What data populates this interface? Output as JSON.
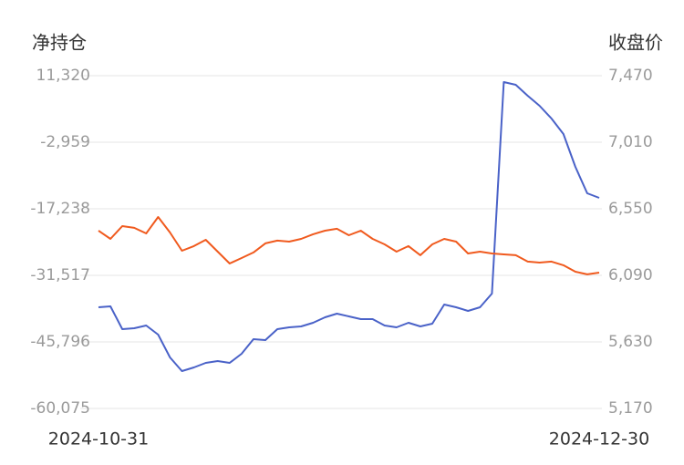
{
  "chart_data": {
    "type": "line",
    "ylabel": "净持仓",
    "y2label": "收盘价",
    "categories": [
      "2024-10-31",
      null,
      null,
      null,
      null,
      null,
      null,
      null,
      null,
      null,
      null,
      null,
      null,
      null,
      null,
      null,
      null,
      null,
      null,
      null,
      null,
      null,
      null,
      null,
      null,
      null,
      null,
      null,
      null,
      null,
      null,
      null,
      null,
      null,
      null,
      null,
      null,
      null,
      null,
      null,
      null,
      null,
      "2024-12-30"
    ],
    "ylim": [
      -60075,
      11320
    ],
    "yticks": [
      {
        "value": 11320,
        "label": "11,320"
      },
      {
        "value": -2959,
        "label": "-2,959"
      },
      {
        "value": -17238,
        "label": "-17,238"
      },
      {
        "value": -31517,
        "label": "-31,517"
      },
      {
        "value": -45796,
        "label": "-45,796"
      },
      {
        "value": -60075,
        "label": "-60,075"
      }
    ],
    "y2lim": [
      5170,
      7470
    ],
    "y2ticks": [
      {
        "value": 7470,
        "label": "7,470"
      },
      {
        "value": 7010,
        "label": "7,010"
      },
      {
        "value": 6550,
        "label": "6,550"
      },
      {
        "value": 6090,
        "label": "6,090"
      },
      {
        "value": 5630,
        "label": "5,630"
      },
      {
        "value": 5170,
        "label": "5,170"
      }
    ],
    "grid": true,
    "series": [
      {
        "color": "#4a62c8",
        "values": [
          -38360,
          -38170,
          -43060,
          -42860,
          -42270,
          -44230,
          -49120,
          -52050,
          -51270,
          -50290,
          -49900,
          -50290,
          -48340,
          -45210,
          -45400,
          -43060,
          -42670,
          -42470,
          -41690,
          -40520,
          -39740,
          -40320,
          -40910,
          -40910,
          -42270,
          -42670,
          -41690,
          -42470,
          -41880,
          -37780,
          -38360,
          -39140,
          -38360,
          -35430,
          9950,
          9360,
          7020,
          4870,
          2130,
          -1200,
          -8240,
          -13910,
          -14890
        ]
      },
      {
        "color": "#f05a1e",
        "axis": "y2",
        "values": [
          6399,
          6342,
          6430,
          6418,
          6380,
          6493,
          6386,
          6260,
          6292,
          6336,
          6254,
          6172,
          6210,
          6248,
          6311,
          6330,
          6323,
          6342,
          6374,
          6399,
          6412,
          6367,
          6399,
          6342,
          6304,
          6254,
          6292,
          6229,
          6304,
          6342,
          6323,
          6241,
          6254,
          6241,
          6235,
          6229,
          6185,
          6178,
          6185,
          6160,
          6115,
          6097,
          6109
        ]
      }
    ]
  }
}
